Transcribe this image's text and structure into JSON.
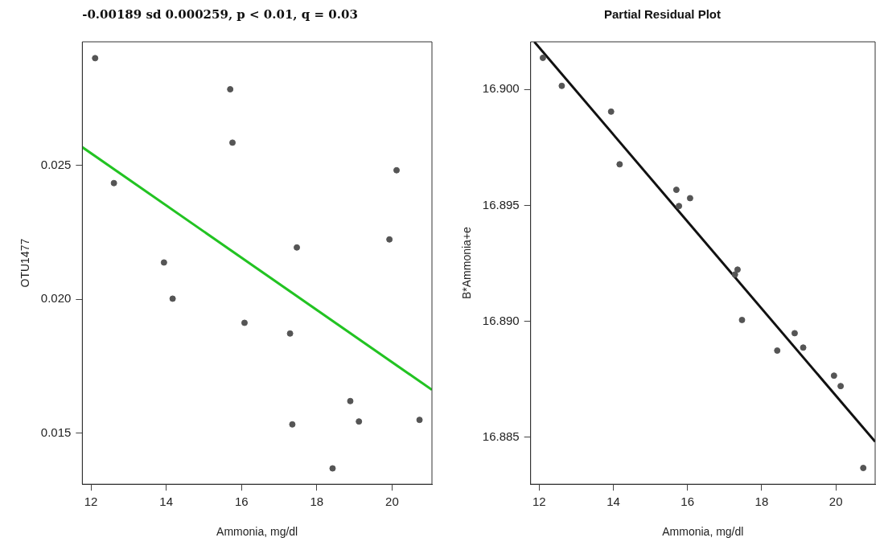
{
  "chart_data": [
    {
      "type": "scatter",
      "title": "-0.00189 sd 0.000259, p < 0.01, q = 0.03",
      "xlabel": "Ammonia, mg/dl",
      "ylabel": "OTU1477",
      "xlim": [
        11.77,
        21.06
      ],
      "ylim": [
        0.0131,
        0.0296
      ],
      "xticks": [
        12,
        14,
        16,
        18,
        20
      ],
      "yticks": [
        0.015,
        {
          "value": 0.02,
          "label": "0.020"
        },
        0.025
      ],
      "series": [
        {
          "marker": "circle",
          "color": "#555555",
          "x": [
            12.11,
            12.61,
            13.94,
            14.17,
            15.7,
            15.76,
            16.08,
            17.29,
            17.35,
            17.47,
            18.42,
            18.89,
            19.12,
            19.93,
            20.12,
            20.73
          ],
          "values": [
            0.02899,
            0.02433,
            0.02137,
            0.02002,
            0.02783,
            0.02584,
            0.01912,
            0.01872,
            0.01533,
            0.02193,
            0.01369,
            0.0162,
            0.01544,
            0.02223,
            0.02481,
            0.0155
          ]
        },
        {
          "type": "line",
          "color": "#22c322",
          "x": [
            11.77,
            21.06
          ],
          "values": [
            0.02567,
            0.01662
          ]
        }
      ]
    },
    {
      "type": "scatter",
      "title": "Partial Residual Plot",
      "xlabel": "Ammonia, mg/dl",
      "ylabel": "B*Ammonia+e",
      "xlim": [
        11.77,
        21.06
      ],
      "ylim": [
        16.88298,
        16.90205
      ],
      "xticks": [
        12,
        14,
        16,
        18,
        20
      ],
      "yticks": [
        16.885,
        {
          "value": 16.89,
          "label": "16.890"
        },
        16.895,
        {
          "value": 16.9,
          "label": "16.900"
        }
      ],
      "series": [
        {
          "marker": "circle",
          "color": "#555555",
          "x": [
            12.1,
            12.61,
            13.94,
            14.17,
            15.7,
            15.77,
            16.07,
            17.28,
            17.35,
            17.47,
            18.42,
            18.89,
            19.12,
            19.95,
            20.13,
            20.74
          ],
          "values": [
            16.90136,
            16.90015,
            16.89904,
            16.89677,
            16.89567,
            16.89497,
            16.89531,
            16.89202,
            16.89223,
            16.89006,
            16.88874,
            16.88949,
            16.88887,
            16.88766,
            16.88721,
            16.88368
          ]
        },
        {
          "type": "line",
          "color": "#111111",
          "x": [
            11.87,
            21.06
          ],
          "values": [
            16.90205,
            16.88481
          ]
        }
      ]
    }
  ]
}
